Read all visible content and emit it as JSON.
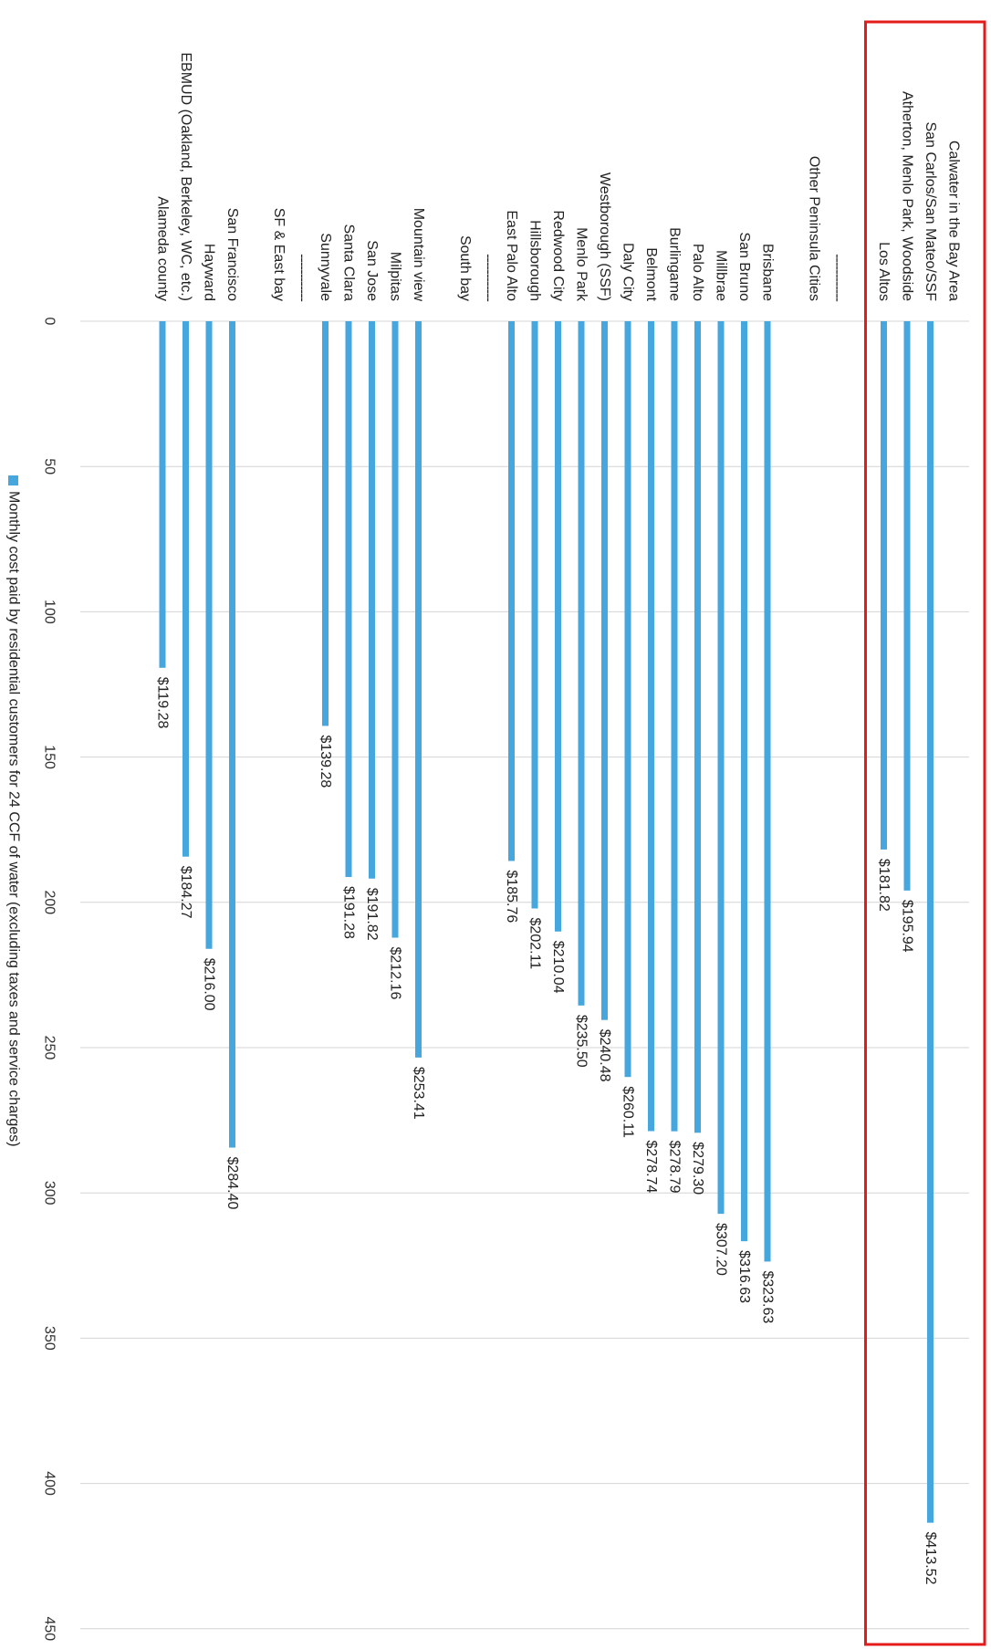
{
  "chart_data": {
    "type": "bar",
    "orientation": "horizontal",
    "series": [
      {
        "name": "Monthly cost paid by residential customers for 24 CCF of water (excluding taxes and service charges)"
      }
    ],
    "xlim": [
      0,
      450
    ],
    "xticks": [
      "0",
      "50",
      "100",
      "150",
      "200",
      "250",
      "300",
      "350",
      "400",
      "450"
    ],
    "grid": true,
    "legend": "bottom",
    "bar_color": "#45a7dd",
    "highlight_color": "#e31b1b",
    "rows": [
      {
        "label": "Calwater in the Bay Area",
        "header": true
      },
      {
        "label": "San Carlos/San Mateo/SSF",
        "value": 413.52,
        "value_label": "$413.52"
      },
      {
        "label": "Atherton, Menlo Park, Woodside",
        "value": 195.94,
        "value_label": "$195.94"
      },
      {
        "label": "Los Altos",
        "value": 181.82,
        "value_label": "$181.82"
      },
      {
        "label": "",
        "header": true
      },
      {
        "label": "------------",
        "header": true
      },
      {
        "label": "Other Peninsula Cities",
        "header": true
      },
      {
        "label": "",
        "header": true
      },
      {
        "label": "Brisbane",
        "value": 323.63,
        "value_label": "$323.63"
      },
      {
        "label": "San Bruno",
        "value": 316.63,
        "value_label": "$316.63"
      },
      {
        "label": "Millbrae",
        "value": 307.2,
        "value_label": "$307.20"
      },
      {
        "label": "Palo Alto",
        "value": 279.3,
        "value_label": "$279.30"
      },
      {
        "label": "Burlingame",
        "value": 278.79,
        "value_label": "$278.79"
      },
      {
        "label": "Belmont",
        "value": 278.74,
        "value_label": "$278.74"
      },
      {
        "label": "Daly City",
        "value": 260.11,
        "value_label": "$260.11"
      },
      {
        "label": "Westborough (SSF)",
        "value": 240.48,
        "value_label": "$240.48"
      },
      {
        "label": "Menlo Park",
        "value": 235.5,
        "value_label": "$235.50"
      },
      {
        "label": "Redwood City",
        "value": 210.04,
        "value_label": "$210.04"
      },
      {
        "label": "Hillsborough",
        "value": 202.11,
        "value_label": "$202.11"
      },
      {
        "label": "East Palo Alto",
        "value": 185.76,
        "value_label": "$185.76"
      },
      {
        "label": "------------",
        "header": true
      },
      {
        "label": "South bay",
        "header": true
      },
      {
        "label": "",
        "header": true
      },
      {
        "label": "Mountain view",
        "value": 253.41,
        "value_label": "$253.41"
      },
      {
        "label": "Milpitas",
        "value": 212.16,
        "value_label": "$212.16"
      },
      {
        "label": "San Jose",
        "value": 191.82,
        "value_label": "$191.82"
      },
      {
        "label": "Santa Clara",
        "value": 191.28,
        "value_label": "$191.28"
      },
      {
        "label": "Sunnyvale",
        "value": 139.28,
        "value_label": "$139.28"
      },
      {
        "label": "------------",
        "header": true
      },
      {
        "label": "SF & East bay",
        "header": true
      },
      {
        "label": "",
        "header": true
      },
      {
        "label": "San Francisco",
        "value": 284.4,
        "value_label": "$284.40"
      },
      {
        "label": "Hayward",
        "value": 216.0,
        "value_label": "$216.00"
      },
      {
        "label": "EBMUD (Oakland, Berkeley, WC, etc.)",
        "value": 184.27,
        "value_label": "$184.27"
      },
      {
        "label": "Alameda county",
        "value": 119.28,
        "value_label": "$119.28"
      }
    ]
  }
}
